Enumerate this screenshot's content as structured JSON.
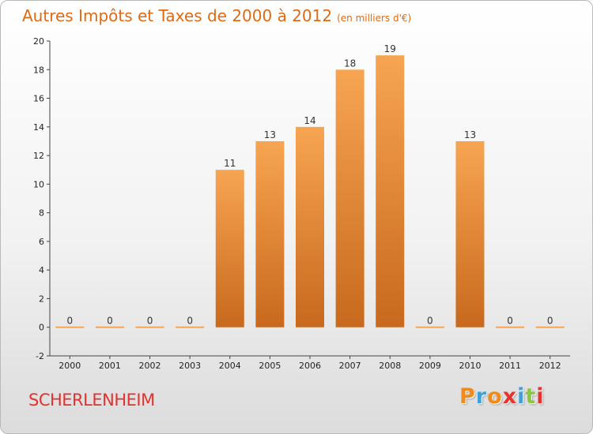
{
  "header": {
    "title": "Autres Impôts et Taxes de 2000 à 2012",
    "subtitle": "(en milliers d'€)"
  },
  "footer": {
    "place": "SCHERLENHEIM",
    "logo_text": "Proxiti",
    "logo_colors": [
      "#f08a1c",
      "#3fa0d8",
      "#f08a1c",
      "#e8322e",
      "#3fa0d8",
      "#8cc63f",
      "#e8322e"
    ]
  },
  "colors": {
    "title": "#e06a12",
    "bar_light": "#f7a552",
    "bar_dark": "#c8691d",
    "place": "#e0332e"
  },
  "chart_data": {
    "type": "bar",
    "categories": [
      "2000",
      "2001",
      "2002",
      "2003",
      "2004",
      "2005",
      "2006",
      "2007",
      "2008",
      "2009",
      "2010",
      "2011",
      "2012"
    ],
    "values": [
      0,
      0,
      0,
      0,
      11,
      13,
      14,
      18,
      19,
      0,
      13,
      0,
      0
    ],
    "ylim": [
      -2,
      20
    ],
    "yticks": [
      -2,
      0,
      2,
      4,
      6,
      8,
      10,
      12,
      14,
      16,
      18,
      20
    ],
    "grid": false,
    "data_labels": true
  }
}
